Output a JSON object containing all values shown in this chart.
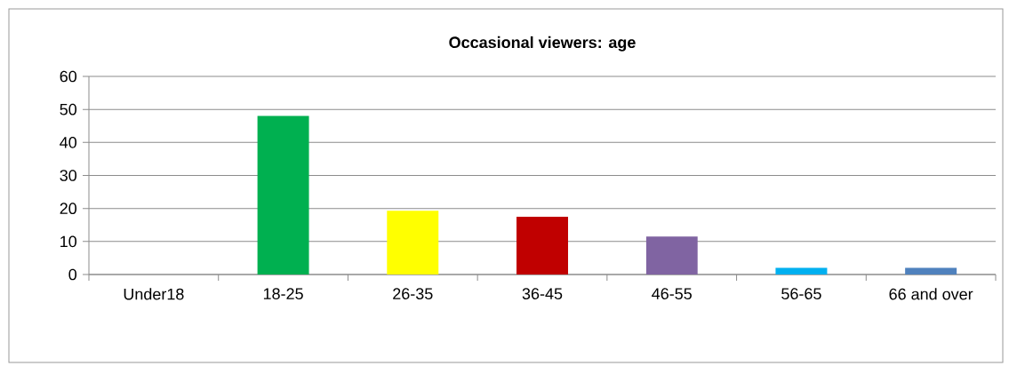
{
  "chart_data": {
    "type": "bar",
    "title": "Occasional viewers: age",
    "categories": [
      "Under18",
      "18-25",
      "26-35",
      "36-45",
      "46-55",
      "56-65",
      "66 and over"
    ],
    "values": [
      0,
      48,
      19.3,
      17.5,
      11.5,
      2,
      2
    ],
    "colors": [
      "#4f81bd",
      "#00b050",
      "#ffff00",
      "#c00000",
      "#8064a2",
      "#00b0f0",
      "#4f81bd"
    ],
    "ylim": [
      0,
      60
    ],
    "yticks": [
      0,
      10,
      20,
      30,
      40,
      50,
      60
    ],
    "grid": "y"
  }
}
